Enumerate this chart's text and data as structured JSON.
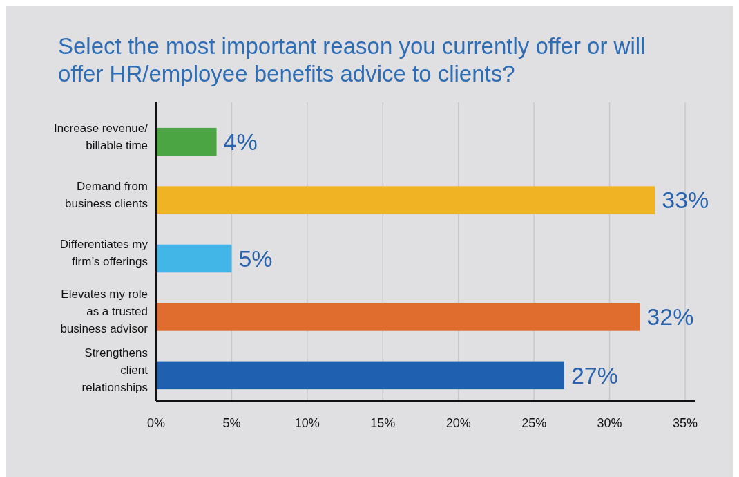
{
  "chart_data": {
    "type": "bar",
    "orientation": "horizontal",
    "title": "Select the most important reason you currently offer or will offer HR/employee benefits advice to clients?",
    "categories": [
      "Increase revenue/ billable time",
      "Demand from business clients",
      "Differentiates my firm’s offerings",
      "Elevates my role as a trusted business advisor",
      "Strengthens client relationships"
    ],
    "values": [
      4,
      33,
      5,
      32,
      27
    ],
    "colors": [
      "#4ba543",
      "#f0b323",
      "#42b6e6",
      "#e06c2e",
      "#2060b0"
    ],
    "value_labels": [
      "4%",
      "33%",
      "5%",
      "32%",
      "27%"
    ],
    "xlim": [
      0,
      35
    ],
    "xticks": [
      {
        "value": 0,
        "label": "0%"
      },
      {
        "value": 5,
        "label": "5%"
      },
      {
        "value": 10,
        "label": "10%"
      },
      {
        "value": 15,
        "label": "15%"
      },
      {
        "value": 20,
        "label": "20%"
      },
      {
        "value": 25,
        "label": "25%"
      },
      {
        "value": 30,
        "label": "30%"
      },
      {
        "value": 35,
        "label": "35%"
      }
    ],
    "grid": "x"
  }
}
